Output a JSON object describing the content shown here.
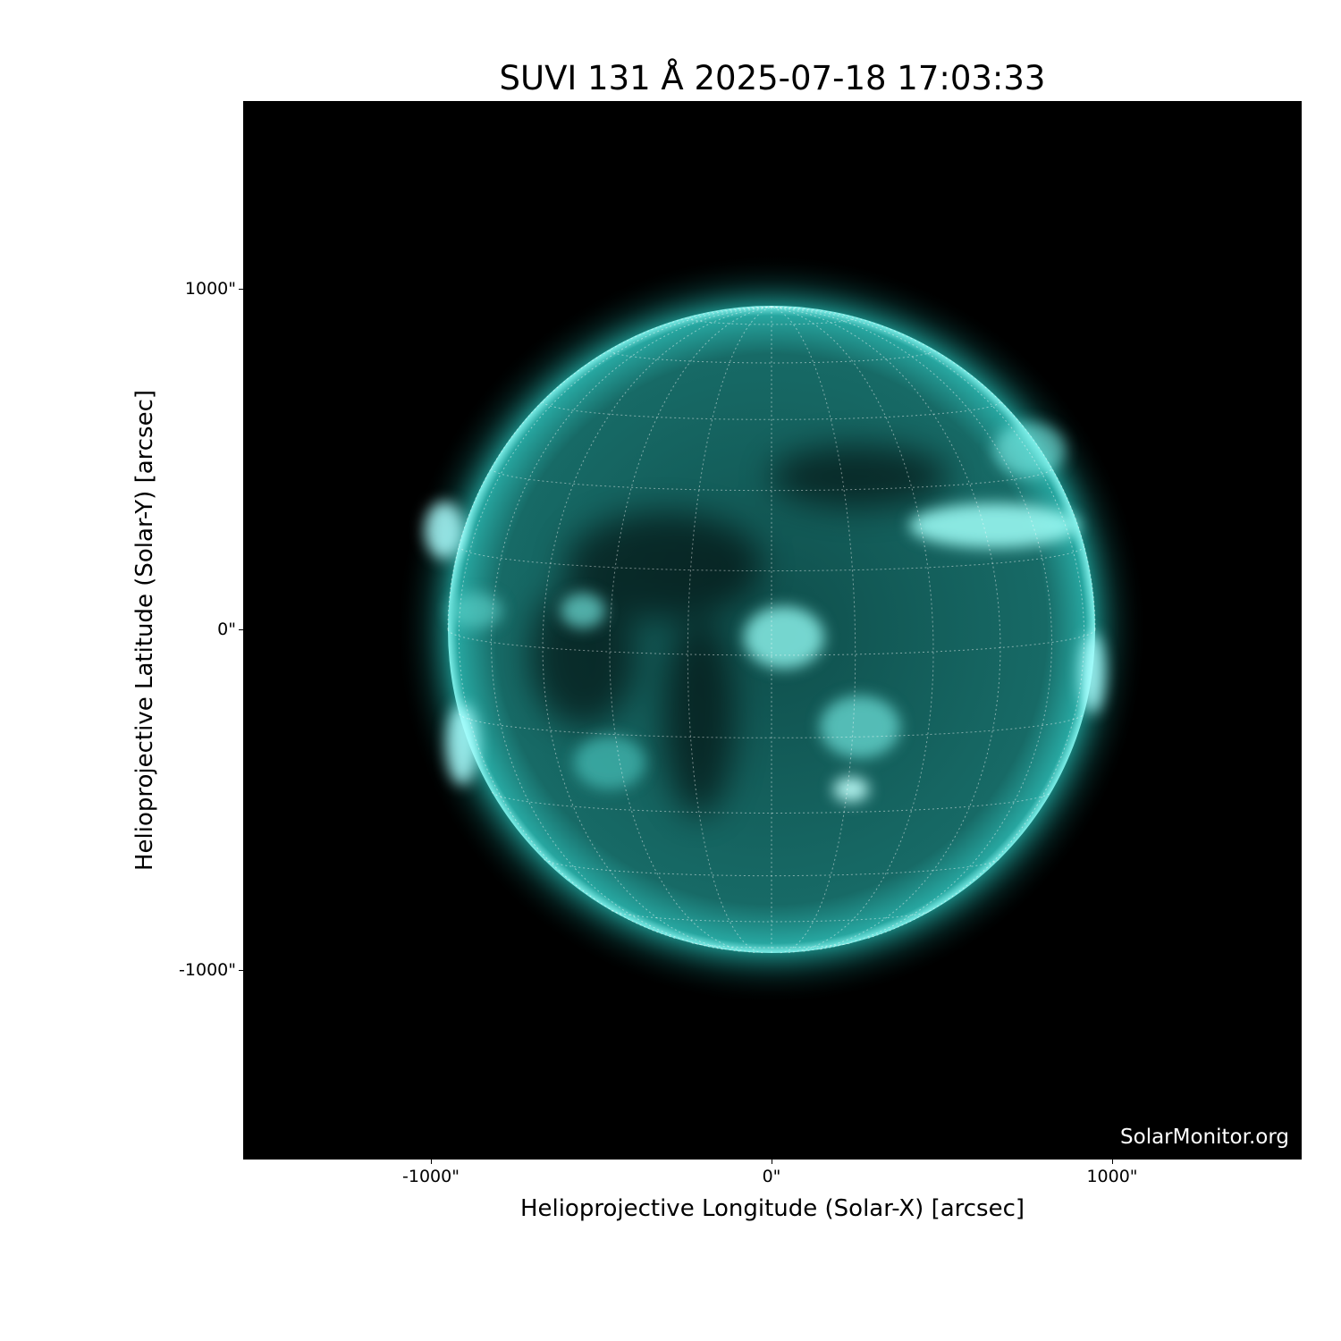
{
  "title": "SUVI 131 Å 2025-07-18 17:03:33",
  "xlabel": "Helioprojective Longitude (Solar-X) [arcsec]",
  "ylabel": "Helioprojective Latitude (Solar-Y) [arcsec]",
  "x_ticks": [
    "-1000\"",
    "0\"",
    "1000\""
  ],
  "y_ticks": [
    "1000\"",
    "0\"",
    "-1000\""
  ],
  "watermark": "SolarMonitor.org",
  "colors": {
    "sun": "#1fa7a0",
    "bright": "#aaffff",
    "background": "#000000"
  }
}
